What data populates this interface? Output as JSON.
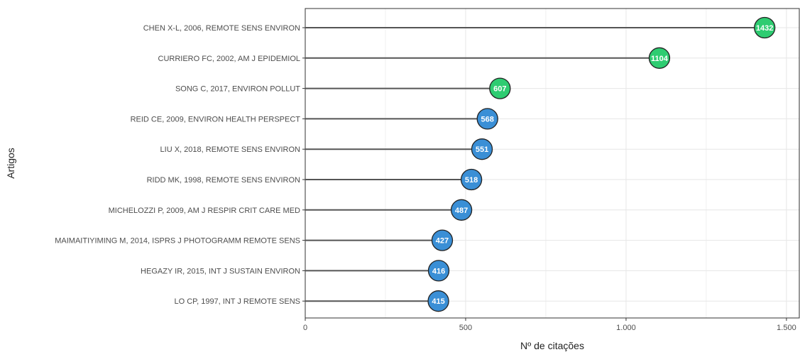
{
  "chart_data": {
    "type": "lollipop",
    "xlabel": "Nº de citações",
    "ylabel": "Artigos",
    "xlim": [
      0,
      1540
    ],
    "x_ticks": [
      0,
      500,
      1000,
      1500
    ],
    "x_tick_labels": [
      "0",
      "500",
      "1.000",
      "1.500"
    ],
    "grid": true,
    "highlight_threshold": 600,
    "colors": {
      "highlight": "#2ecc71",
      "normal": "#3a8fd6",
      "stem": "#555555",
      "grid": "#e6e6e6",
      "label_text": "#ffffff"
    },
    "categories": [
      "CHEN X-L, 2006, REMOTE SENS ENVIRON",
      "CURRIERO FC, 2002, AM J EPIDEMIOL",
      "SONG C, 2017, ENVIRON POLLUT",
      "REID CE, 2009, ENVIRON HEALTH PERSPECT",
      "LIU X, 2018, REMOTE SENS ENVIRON",
      "RIDD MK, 1998, REMOTE SENS ENVIRON",
      "MICHELOZZI P, 2009, AM J RESPIR CRIT CARE MED",
      "MAIMAITIYIMING M, 2014, ISPRS J PHOTOGRAMM REMOTE SENS",
      "HEGAZY IR, 2015, INT J SUSTAIN ENVIRON",
      "LO CP, 1997, INT J REMOTE SENS"
    ],
    "values": [
      1432,
      1104,
      607,
      568,
      551,
      518,
      487,
      427,
      416,
      415
    ]
  }
}
